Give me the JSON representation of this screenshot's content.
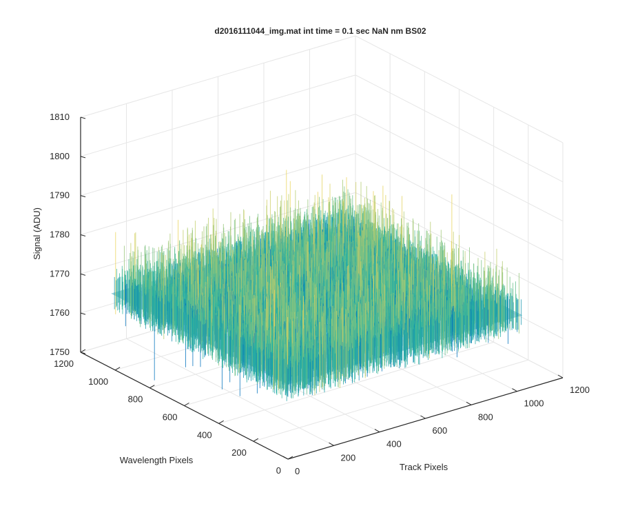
{
  "chart_data": {
    "type": "surface",
    "title": "d2016111044_img.mat int time = 0.1 sec  NaN nm BS02",
    "zlabel": "Signal (ADU)",
    "ylabel": "Wavelength Pixels",
    "xlabel": "Track Pixels",
    "xlim": [
      0,
      1200
    ],
    "ylim": [
      0,
      1200
    ],
    "zlim": [
      1750,
      1810
    ],
    "xticks": [
      0,
      200,
      400,
      600,
      800,
      1000,
      1200
    ],
    "yticks": [
      0,
      200,
      400,
      600,
      800,
      1000,
      1200
    ],
    "zticks": [
      1750,
      1760,
      1770,
      1780,
      1790,
      1800,
      1810
    ],
    "data_extent": {
      "x": [
        0,
        1024
      ],
      "y": [
        0,
        1024
      ]
    },
    "signal": {
      "mean": 1773,
      "typical_range": [
        1763,
        1785
      ],
      "min_spike": 1752,
      "max_spike": 1805
    },
    "grid": true,
    "colors": {
      "low": "#0072bd",
      "mid": "#2bb5a0",
      "high": "#ead45b"
    }
  }
}
